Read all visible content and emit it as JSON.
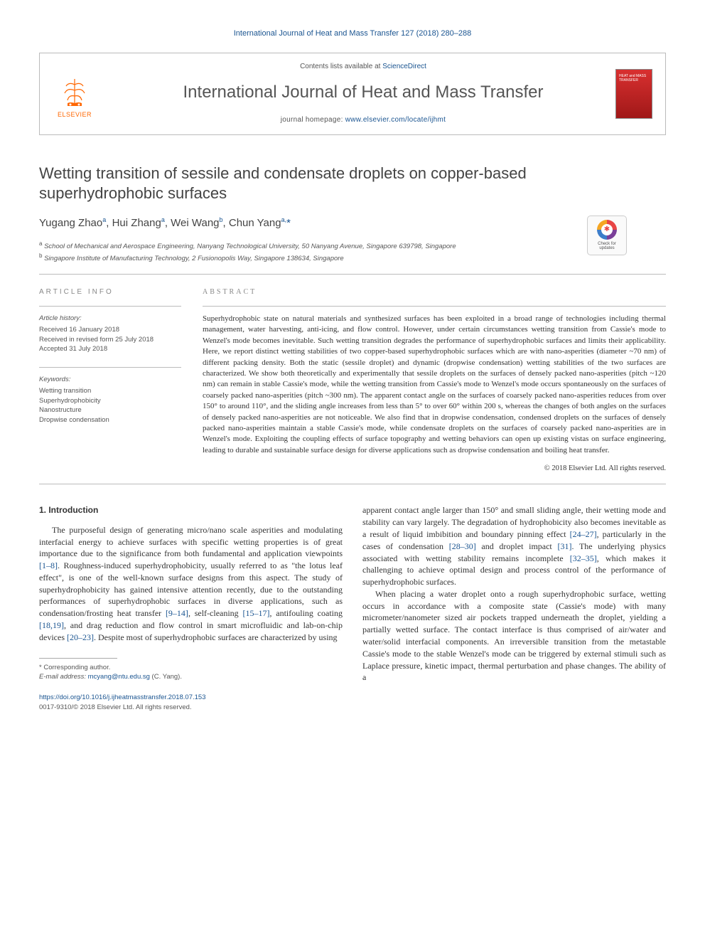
{
  "citation": "International Journal of Heat and Mass Transfer 127 (2018) 280–288",
  "header": {
    "contents_prefix": "Contents lists available at ",
    "contents_link": "ScienceDirect",
    "journal_name": "International Journal of Heat and Mass Transfer",
    "homepage_prefix": "journal homepage: ",
    "homepage_url": "www.elsevier.com/locate/ijhmt",
    "publisher": "ELSEVIER",
    "cover_label": "HEAT and MASS TRANSFER"
  },
  "check_updates": {
    "line1": "Check for",
    "line2": "updates"
  },
  "article": {
    "title": "Wetting transition of sessile and condensate droplets on copper-based superhydrophobic surfaces",
    "authors_html": "Yugang Zhao<sup>a</sup>, Hui Zhang<sup>a</sup>, Wei Wang<sup>b</sup>, Chun Yang<sup>a,</sup><span class='corr'>*</span>",
    "affiliations": [
      {
        "sup": "a",
        "text": "School of Mechanical and Aerospace Engineering, Nanyang Technological University, 50 Nanyang Avenue, Singapore 639798, Singapore"
      },
      {
        "sup": "b",
        "text": "Singapore Institute of Manufacturing Technology, 2 Fusionopolis Way, Singapore 138634, Singapore"
      }
    ]
  },
  "info": {
    "heading": "ARTICLE INFO",
    "history_heading": "Article history:",
    "history": [
      "Received 16 January 2018",
      "Received in revised form 25 July 2018",
      "Accepted 31 July 2018"
    ],
    "keywords_heading": "Keywords:",
    "keywords": [
      "Wetting transition",
      "Superhydrophobicity",
      "Nanostructure",
      "Dropwise condensation"
    ]
  },
  "abstract": {
    "heading": "ABSTRACT",
    "text": "Superhydrophobic state on natural materials and synthesized surfaces has been exploited in a broad range of technologies including thermal management, water harvesting, anti-icing, and flow control. However, under certain circumstances wetting transition from Cassie's mode to Wenzel's mode becomes inevitable. Such wetting transition degrades the performance of superhydrophobic surfaces and limits their applicability. Here, we report distinct wetting stabilities of two copper-based superhydrophobic surfaces which are with nano-asperities (diameter ~70 nm) of different packing density. Both the static (sessile droplet) and dynamic (dropwise condensation) wetting stabilities of the two surfaces are characterized. We show both theoretically and experimentally that sessile droplets on the surfaces of densely packed nano-asperities (pitch ~120 nm) can remain in stable Cassie's mode, while the wetting transition from Cassie's mode to Wenzel's mode occurs spontaneously on the surfaces of coarsely packed nano-asperities (pitch ~300 nm). The apparent contact angle on the surfaces of coarsely packed nano-asperities reduces from over 150° to around 110°, and the sliding angle increases from less than 5° to over 60° within 200 s, whereas the changes of both angles on the surfaces of densely packed nano-asperities are not noticeable. We also find that in dropwise condensation, condensed droplets on the surfaces of densely packed nano-asperities maintain a stable Cassie's mode, while condensate droplets on the surfaces of coarsely packed nano-asperities are in Wenzel's mode. Exploiting the coupling effects of surface topography and wetting behaviors can open up existing vistas on surface engineering, leading to durable and sustainable surface design for diverse applications such as dropwise condensation and boiling heat transfer.",
    "copyright": "© 2018 Elsevier Ltd. All rights reserved."
  },
  "body": {
    "section_heading": "1. Introduction",
    "col1": "The purposeful design of generating micro/nano scale asperities and modulating interfacial energy to achieve surfaces with specific wetting properties is of great importance due to the significance from both fundamental and application viewpoints <span class='ref'>[1–8]</span>. Roughness-induced superhydrophobicity, usually referred to as \"the lotus leaf effect\", is one of the well-known surface designs from this aspect. The study of superhydrophobicity has gained intensive attention recently, due to the outstanding performances of superhydrophobic surfaces in diverse applications, such as condensation/frosting heat transfer <span class='ref'>[9–14]</span>, self-cleaning <span class='ref'>[15–17]</span>, antifouling coating <span class='ref'>[18,19]</span>, and drag reduction and flow control in smart microfluidic and lab-on-chip devices <span class='ref'>[20–23]</span>. Despite most of superhydrophobic surfaces are characterized by using",
    "col2_p1": "apparent contact angle larger than 150° and small sliding angle, their wetting mode and stability can vary largely. The degradation of hydrophobicity also becomes inevitable as a result of liquid imbibition and boundary pinning effect <span class='ref'>[24–27]</span>, particularly in the cases of condensation <span class='ref'>[28–30]</span> and droplet impact <span class='ref'>[31]</span>. The underlying physics associated with wetting stability remains incomplete <span class='ref'>[32–35]</span>, which makes it challenging to achieve optimal design and process control of the performance of superhydrophobic surfaces.",
    "col2_p2": "When placing a water droplet onto a rough superhydrophobic surface, wetting occurs in accordance with a composite state (Cassie's mode) with many micrometer/nanometer sized air pockets trapped underneath the droplet, yielding a partially wetted surface. The contact interface is thus comprised of air/water and water/solid interfacial components. An irreversible transition from the metastable Cassie's mode to the stable Wenzel's mode can be triggered by external stimuli such as Laplace pressure, kinetic impact, thermal perturbation and phase changes. The ability of a"
  },
  "footnote": {
    "corr_label": "* Corresponding author.",
    "email_label": "E-mail address: ",
    "email": "mcyang@ntu.edu.sg",
    "email_suffix": " (C. Yang)."
  },
  "doi": {
    "url": "https://doi.org/10.1016/j.ijheatmasstransfer.2018.07.153",
    "issn_line": "0017-9310/© 2018 Elsevier Ltd. All rights reserved."
  },
  "colors": {
    "link": "#1a5490",
    "elsevier_orange": "#ff6600",
    "text": "#333333",
    "muted": "#555555",
    "rule": "#bbbbbb"
  }
}
